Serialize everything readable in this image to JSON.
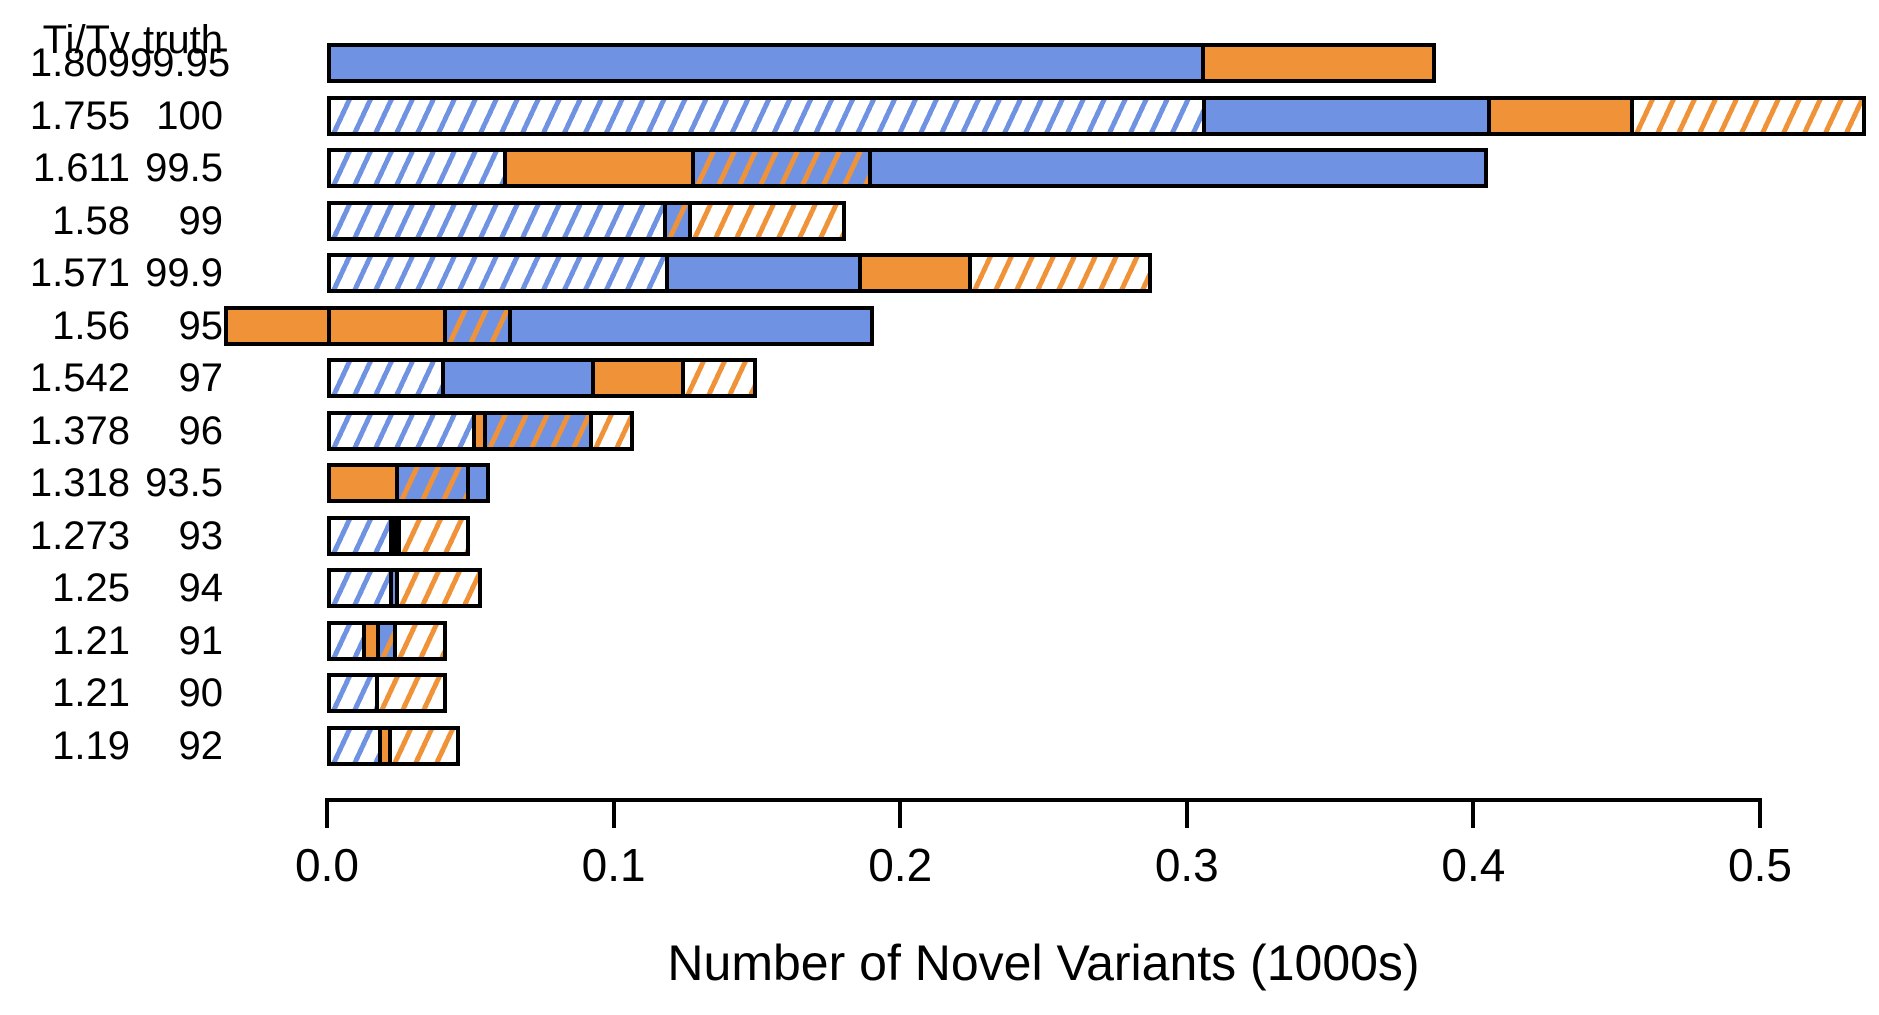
{
  "chart_data": {
    "type": "bar",
    "orientation": "horizontal",
    "title": "",
    "xlabel": "Number of Novel Variants (1000s)",
    "ylabel": "",
    "header": {
      "col1": "Ti/Tv",
      "col2": "truth"
    },
    "x_ticks": [
      0.0,
      0.1,
      0.2,
      0.3,
      0.4,
      0.5
    ],
    "xlim": [
      -0.04,
      0.545
    ],
    "grid": false,
    "legend": null,
    "colors": {
      "blue": "#6F92E3",
      "orange": "#F09338",
      "ink": "#000000"
    },
    "pattern_types": [
      "blue-solid",
      "orange-solid",
      "blue-hatch",
      "orange-hatch",
      "overlap",
      "black"
    ],
    "rows": [
      {
        "titv": "1.809",
        "truth": "99.95",
        "segments": [
          {
            "type": "blue-solid",
            "start": 0,
            "end": 0.307
          },
          {
            "type": "orange-solid",
            "start": 0.307,
            "end": 0.387
          }
        ]
      },
      {
        "titv": "1.755",
        "truth": "100",
        "segments": [
          {
            "type": "blue-hatch",
            "start": 0,
            "end": 0.307
          },
          {
            "type": "blue-solid",
            "start": 0.307,
            "end": 0.407
          },
          {
            "type": "orange-solid",
            "start": 0.407,
            "end": 0.457
          },
          {
            "type": "orange-hatch",
            "start": 0.457,
            "end": 0.537
          }
        ]
      },
      {
        "titv": "1.611",
        "truth": "99.5",
        "segments": [
          {
            "type": "blue-hatch",
            "start": 0,
            "end": 0.062
          },
          {
            "type": "orange-solid",
            "start": 0.062,
            "end": 0.128
          },
          {
            "type": "overlap",
            "start": 0.128,
            "end": 0.19
          },
          {
            "type": "blue-solid",
            "start": 0.19,
            "end": 0.405
          }
        ]
      },
      {
        "titv": "1.58",
        "truth": "99",
        "segments": [
          {
            "type": "blue-hatch",
            "start": 0,
            "end": 0.119
          },
          {
            "type": "overlap",
            "start": 0.119,
            "end": 0.128
          },
          {
            "type": "orange-hatch",
            "start": 0.128,
            "end": 0.181
          }
        ]
      },
      {
        "titv": "1.571",
        "truth": "99.9",
        "segments": [
          {
            "type": "blue-hatch",
            "start": 0,
            "end": 0.119
          },
          {
            "type": "blue-solid",
            "start": 0.119,
            "end": 0.187
          },
          {
            "type": "orange-solid",
            "start": 0.187,
            "end": 0.226
          },
          {
            "type": "orange-hatch",
            "start": 0.226,
            "end": 0.288
          }
        ]
      },
      {
        "titv": "1.56",
        "truth": "95",
        "zero_line": true,
        "segments": [
          {
            "type": "orange-solid",
            "start": -0.036,
            "end": 0.0415
          },
          {
            "type": "overlap",
            "start": 0.0415,
            "end": 0.0645
          },
          {
            "type": "blue-solid",
            "start": 0.0645,
            "end": 0.191
          }
        ]
      },
      {
        "titv": "1.542",
        "truth": "97",
        "segments": [
          {
            "type": "blue-hatch",
            "start": 0,
            "end": 0.0405
          },
          {
            "type": "blue-solid",
            "start": 0.0405,
            "end": 0.094
          },
          {
            "type": "orange-solid",
            "start": 0.094,
            "end": 0.126
          },
          {
            "type": "orange-hatch",
            "start": 0.126,
            "end": 0.15
          }
        ]
      },
      {
        "titv": "1.378",
        "truth": "96",
        "segments": [
          {
            "type": "blue-hatch",
            "start": 0,
            "end": 0.052
          },
          {
            "type": "orange-solid",
            "start": 0.052,
            "end": 0.056
          },
          {
            "type": "overlap",
            "start": 0.056,
            "end": 0.094
          },
          {
            "type": "orange-hatch",
            "start": 0.094,
            "end": 0.107
          }
        ]
      },
      {
        "titv": "1.318",
        "truth": "93.5",
        "segments": [
          {
            "type": "orange-solid",
            "start": 0,
            "end": 0.025
          },
          {
            "type": "overlap",
            "start": 0.025,
            "end": 0.051
          },
          {
            "type": "blue-solid",
            "start": 0.051,
            "end": 0.057
          }
        ]
      },
      {
        "titv": "1.273",
        "truth": "93",
        "segments": [
          {
            "type": "blue-hatch",
            "start": 0,
            "end": 0.0228
          },
          {
            "type": "black",
            "start": 0.0228,
            "end": 0.0258
          },
          {
            "type": "orange-hatch",
            "start": 0.0258,
            "end": 0.05
          }
        ]
      },
      {
        "titv": "1.25",
        "truth": "94",
        "segments": [
          {
            "type": "blue-hatch",
            "start": 0,
            "end": 0.0228
          },
          {
            "type": "blue-solid",
            "start": 0.0228,
            "end": 0.0252
          },
          {
            "type": "orange-hatch",
            "start": 0.0252,
            "end": 0.054
          }
        ]
      },
      {
        "titv": "1.21",
        "truth": "91",
        "segments": [
          {
            "type": "blue-hatch",
            "start": 0,
            "end": 0.013
          },
          {
            "type": "orange-solid",
            "start": 0.013,
            "end": 0.0185
          },
          {
            "type": "overlap",
            "start": 0.0185,
            "end": 0.0247
          },
          {
            "type": "orange-hatch",
            "start": 0.0247,
            "end": 0.042
          }
        ]
      },
      {
        "titv": "1.21",
        "truth": "90",
        "segments": [
          {
            "type": "blue-hatch",
            "start": 0,
            "end": 0.018
          },
          {
            "type": "orange-hatch",
            "start": 0.018,
            "end": 0.042
          }
        ]
      },
      {
        "titv": "1.19",
        "truth": "92",
        "segments": [
          {
            "type": "blue-hatch",
            "start": 0,
            "end": 0.019
          },
          {
            "type": "orange-solid",
            "start": 0.019,
            "end": 0.0225
          },
          {
            "type": "orange-hatch",
            "start": 0.0225,
            "end": 0.0465
          }
        ]
      }
    ]
  }
}
